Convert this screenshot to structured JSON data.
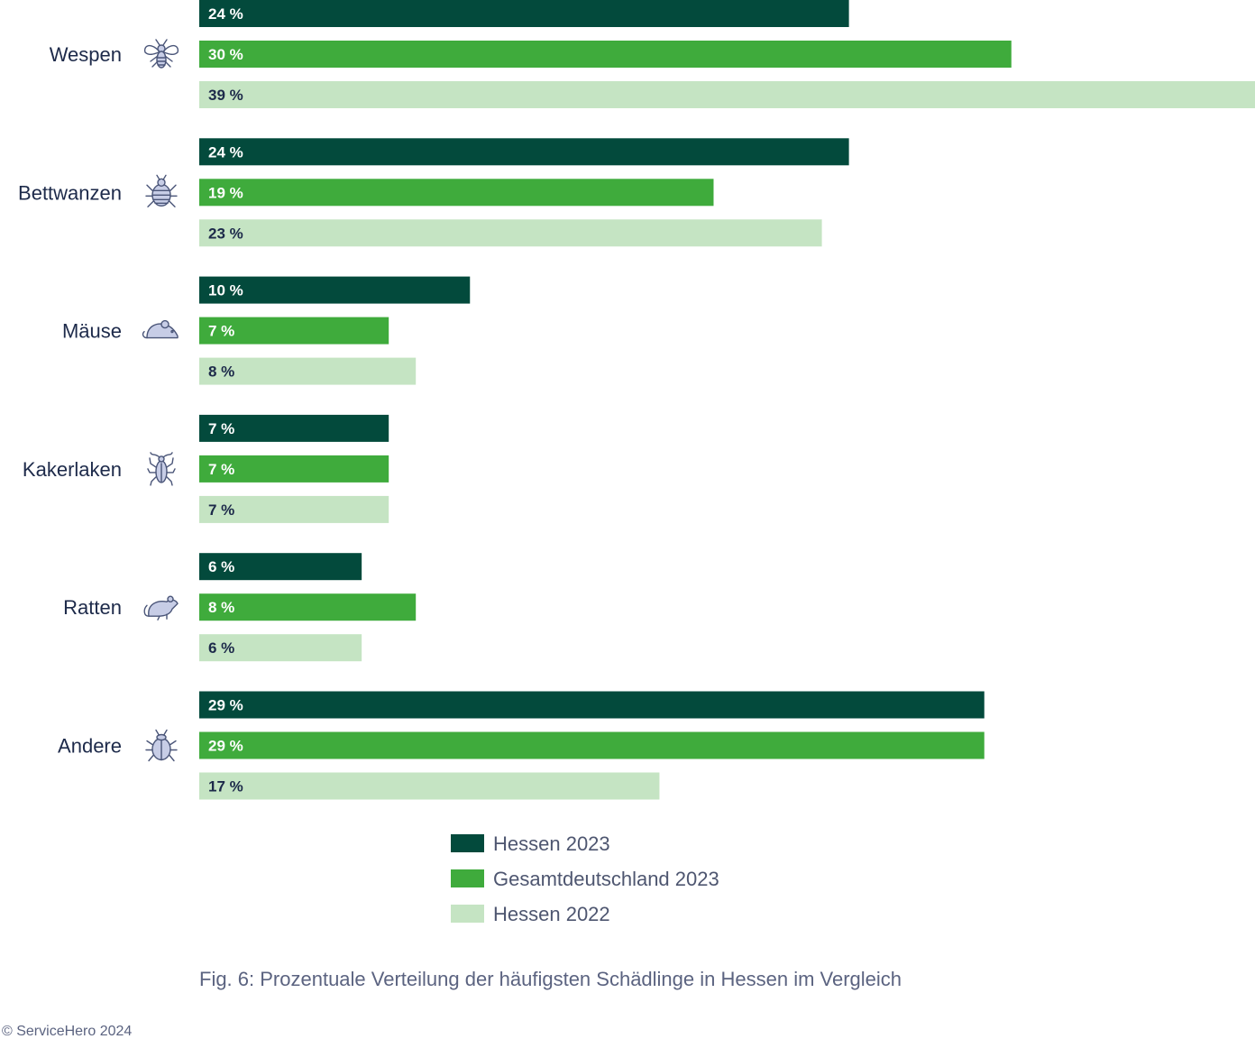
{
  "chart_data": {
    "type": "bar",
    "orientation": "horizontal",
    "categories": [
      "Wespen",
      "Bettwanzen",
      "Mäuse",
      "Kakerlaken",
      "Ratten",
      "Andere"
    ],
    "category_icons": [
      "wasp-icon",
      "bedbug-icon",
      "mouse-icon",
      "cockroach-icon",
      "rat-icon",
      "beetle-icon"
    ],
    "series": [
      {
        "name": "Hessen 2023",
        "color": "#034a3c",
        "values": [
          24,
          24,
          10,
          7,
          6,
          29
        ],
        "labels": [
          "24 %",
          "24 %",
          "10 %",
          "7 %",
          "6 %",
          "29 %"
        ]
      },
      {
        "name": "Gesamtdeutschland 2023",
        "color": "#3fab3c",
        "values": [
          30,
          19,
          7,
          7,
          8,
          29
        ],
        "labels": [
          "30 %",
          "19 %",
          "7 %",
          "7 %",
          "8 %",
          "29 %"
        ]
      },
      {
        "name": "Hessen 2022",
        "color": "#c5e4c3",
        "values": [
          39,
          23,
          8,
          7,
          6,
          17
        ],
        "labels": [
          "39 %",
          "23 %",
          "8 %",
          "7 %",
          "6 %",
          "17  %"
        ]
      }
    ],
    "label_colors": [
      "#ffffff",
      "#ffffff",
      "#1d2a4a"
    ],
    "xlim": [
      0,
      39
    ],
    "legend_position": "bottom",
    "grid": false
  },
  "caption": "Fig. 6: Prozentuale Verteilung der häufigsten Schädlinge in Hessen im Vergleich",
  "copyright": "© ServiceHero 2024"
}
